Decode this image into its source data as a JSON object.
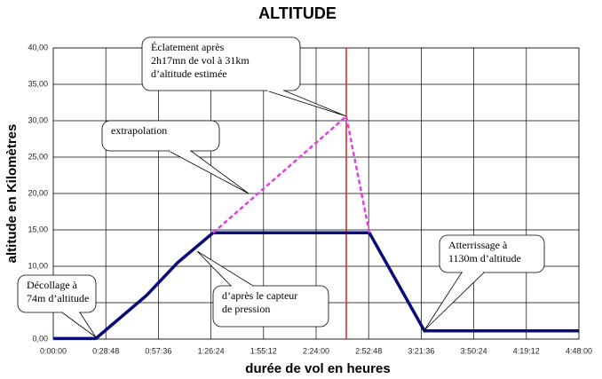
{
  "chart_data": {
    "type": "line",
    "title": "ALTITUDE",
    "x_label": "durée de vol en heures",
    "y_label": "altitude en Kilomètres",
    "xlim": [
      0,
      17280
    ],
    "xticks": [
      {
        "value": 0,
        "label": "0:00:00"
      },
      {
        "value": 1728,
        "label": "0:28:48"
      },
      {
        "value": 3456,
        "label": "0:57:36"
      },
      {
        "value": 5184,
        "label": "1:26:24"
      },
      {
        "value": 6912,
        "label": "1:55:12"
      },
      {
        "value": 8640,
        "label": "2:24:00"
      },
      {
        "value": 10368,
        "label": "2:52:48"
      },
      {
        "value": 12096,
        "label": "3:21:36"
      },
      {
        "value": 13824,
        "label": "3:50:24"
      },
      {
        "value": 15552,
        "label": "4:19:12"
      },
      {
        "value": 17280,
        "label": "4:48:00"
      }
    ],
    "ylim": [
      0,
      40
    ],
    "yticks": [
      {
        "value": 0,
        "label": "0,00"
      },
      {
        "value": 5,
        "label": "5,00"
      },
      {
        "value": 10,
        "label": "10,00"
      },
      {
        "value": 15,
        "label": "15,00"
      },
      {
        "value": 20,
        "label": "20,00"
      },
      {
        "value": 25,
        "label": "25,00"
      },
      {
        "value": 30,
        "label": "30,00"
      },
      {
        "value": 35,
        "label": "35,00"
      },
      {
        "value": 40,
        "label": "40,00"
      }
    ],
    "grid": true,
    "series": [
      {
        "color": "#0a0a78",
        "style": "solid",
        "x": [
          0,
          1400,
          3065,
          4087,
          5254,
          10391,
          12201,
          17280
        ],
        "values": [
          0.074,
          0.074,
          6,
          10.5,
          14.6,
          14.6,
          1.13,
          1.13
        ]
      },
      {
        "color": "#e040e0",
        "style": "dashed",
        "x": [
          5254,
          9632,
          10391
        ],
        "values": [
          14.6,
          30.6,
          14.6
        ]
      }
    ],
    "burst_x": 9632,
    "burst_color": "#dd2222",
    "annotations": [
      [
        "Éclatement après",
        "2h17mn  de vol à 31km",
        "d’altitude estimée"
      ],
      [
        "extrapolation"
      ],
      [
        "Décollage à",
        "74m d’altitude"
      ],
      [
        "d’après le capteur",
        "de pression"
      ],
      [
        "Atterrissage à",
        "1130m d’altitude"
      ]
    ]
  }
}
